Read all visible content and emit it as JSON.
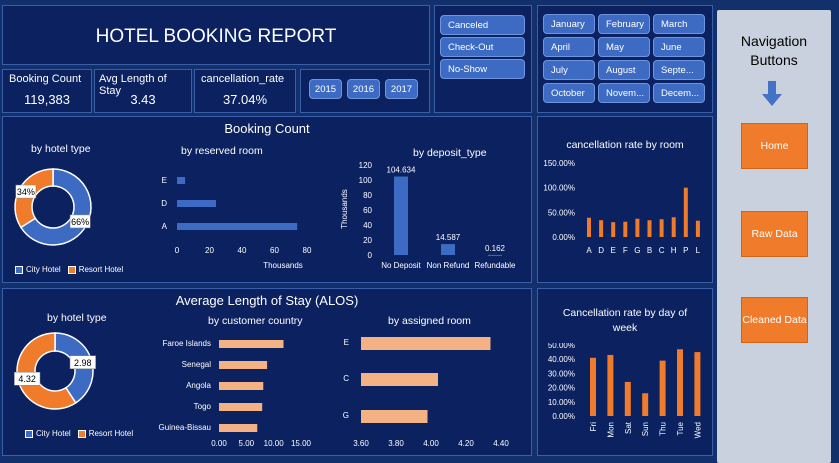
{
  "header": {
    "title": "HOTEL BOOKING REPORT"
  },
  "kpis": [
    {
      "label": "Booking Count",
      "value": "119,383"
    },
    {
      "label": "Avg Length of Stay",
      "value": "3.43"
    },
    {
      "label": "cancellation_rate",
      "value": "37.04%"
    }
  ],
  "years": [
    "2015",
    "2016",
    "2017"
  ],
  "status_buttons": [
    "Canceled",
    "Check-Out",
    "No-Show"
  ],
  "months": [
    "January",
    "February",
    "March",
    "April",
    "May",
    "June",
    "July",
    "August",
    "Septe...",
    "October",
    "Novem...",
    "Decem..."
  ],
  "nav": {
    "title": "Navigation Buttons",
    "buttons": [
      "Home",
      "Raw Data",
      "Cleaned Data"
    ]
  },
  "colors": {
    "blue": "#3d6bc4",
    "orange": "#ef7b2b",
    "peach": "#f4b183",
    "panel": "#0b2160"
  },
  "booking": {
    "title": "Booking Count",
    "hotel_type_title": "by hotel type",
    "reserved_title": "by reserved room",
    "deposit_title": "by deposit_type",
    "legend": [
      "City Hotel",
      "Resort Hotel"
    ]
  },
  "alos": {
    "title": "Average Length of Stay (ALOS)",
    "hotel_type_title": "by hotel type",
    "country_title": "by customer country",
    "room_title": "by assigned room",
    "legend": [
      "City Hotel",
      "Resort Hotel"
    ]
  },
  "cancel_room": {
    "title": "cancellation rate by room"
  },
  "cancel_day": {
    "title": "Cancellation rate by day of week"
  },
  "chart_data": [
    {
      "id": "booking_hotel_type",
      "type": "pie",
      "title": "by hotel type",
      "categories": [
        "City Hotel",
        "Resort Hotel"
      ],
      "values": [
        66,
        34
      ],
      "labels": [
        "66%",
        "34%"
      ]
    },
    {
      "id": "booking_reserved_room",
      "type": "bar",
      "title": "by reserved room",
      "categories": [
        "A",
        "D",
        "E"
      ],
      "values": [
        74,
        24,
        5
      ],
      "xlabel": "Thousands",
      "xlim": [
        0,
        80
      ],
      "xticks": [
        "0",
        "20",
        "40",
        "60",
        "80"
      ]
    },
    {
      "id": "booking_deposit_type",
      "type": "bar",
      "title": "by deposit_type",
      "categories": [
        "No Deposit",
        "Non Refund",
        "Refundable"
      ],
      "values": [
        104.634,
        14.587,
        0.162
      ],
      "data_labels": [
        "104.634",
        "14.587",
        "0.162"
      ],
      "ylabel": "Thousands",
      "ylim": [
        0,
        120
      ],
      "yticks": [
        "0",
        "20",
        "40",
        "60",
        "80",
        "100",
        "120"
      ]
    },
    {
      "id": "alos_hotel_type",
      "type": "pie",
      "title": "by hotel type",
      "categories": [
        "City Hotel",
        "Resort Hotel"
      ],
      "values": [
        2.98,
        4.32
      ],
      "labels": [
        "2.98",
        "4.32"
      ]
    },
    {
      "id": "alos_country",
      "type": "bar",
      "title": "by customer country",
      "categories": [
        "Faroe Islands",
        "Senegal",
        "Angola",
        "Togo",
        "Guinea-Bissau"
      ],
      "values": [
        11.8,
        8.8,
        8.1,
        7.9,
        7.0
      ],
      "xlim": [
        0,
        15
      ],
      "xticks": [
        "0.00",
        "5.00",
        "10.00",
        "15.00"
      ]
    },
    {
      "id": "alos_assigned_room",
      "type": "bar",
      "title": "by assigned room",
      "categories": [
        "E",
        "C",
        "G"
      ],
      "values": [
        4.34,
        4.04,
        3.98
      ],
      "xlim": [
        3.6,
        4.4
      ],
      "xticks": [
        "3.60",
        "3.80",
        "4.00",
        "4.20",
        "4.40"
      ]
    },
    {
      "id": "cancel_by_room",
      "type": "bar",
      "title": "cancellation rate by room",
      "categories": [
        "A",
        "D",
        "E",
        "F",
        "G",
        "B",
        "C",
        "H",
        "P",
        "L"
      ],
      "values": [
        39,
        34,
        30,
        31,
        37,
        34,
        36,
        40,
        100,
        33
      ],
      "ylim": [
        0,
        150
      ],
      "yticks": [
        "0.00%",
        "50.00%",
        "100.00%",
        "150.00%"
      ]
    },
    {
      "id": "cancel_by_day",
      "type": "bar",
      "title": "Cancellation rate by day of week",
      "categories": [
        "Fri",
        "Mon",
        "Sat",
        "Sun",
        "Thu",
        "Tue",
        "Wed"
      ],
      "values": [
        41,
        43,
        24,
        16,
        39,
        47,
        45
      ],
      "ylim": [
        0,
        50
      ],
      "yticks": [
        "0.00%",
        "10.00%",
        "20.00%",
        "30.00%",
        "40.00%",
        "50.00%"
      ]
    }
  ]
}
